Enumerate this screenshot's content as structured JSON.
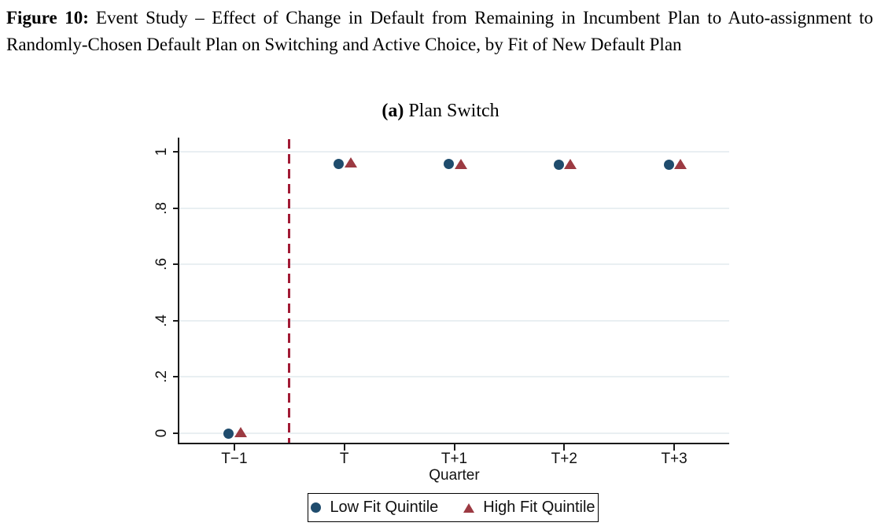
{
  "figure": {
    "label": "Figure 10:",
    "title": "Event Study – Effect of Change in Default from Remaining in Incumbent Plan to Auto-assignment to Randomly-Chosen Default Plan on Switching and Active Choice, by Fit of New Default Plan"
  },
  "panel": {
    "label": "(a)",
    "title": "Plan Switch"
  },
  "chart_data": {
    "type": "scatter",
    "subtitle": "(a) Plan Switch",
    "categories": [
      "T−1",
      "T",
      "T+1",
      "T+2",
      "T+3"
    ],
    "xlabel": "Quarter",
    "ylabel": "",
    "ylim": [
      0,
      1
    ],
    "yticks": [
      {
        "value": 0.0,
        "label": "0"
      },
      {
        "value": 0.2,
        "label": ".2"
      },
      {
        "value": 0.4,
        "label": ".4"
      },
      {
        "value": 0.6,
        "label": ".6"
      },
      {
        "value": 0.8,
        "label": ".8"
      },
      {
        "value": 1.0,
        "label": "1"
      }
    ],
    "grid": true,
    "legend_position": "bottom-center",
    "series": [
      {
        "name": "Low Fit Quintile",
        "marker": "circle",
        "color": "#1f4c6d",
        "values": [
          0.0,
          0.958,
          0.956,
          0.955,
          0.955
        ]
      },
      {
        "name": "High Fit Quintile",
        "marker": "triangle",
        "color": "#9c3a42",
        "values": [
          0.004,
          0.961,
          0.958,
          0.958,
          0.958
        ]
      }
    ],
    "ref_line": {
      "description": "vertical dashed line between T−1 and T",
      "between_index": 0,
      "style": "dashed",
      "color": "#a11b35"
    },
    "colors": {
      "gridline": "#e9eff2",
      "axis": "#1a1a1a",
      "background": "#ffffff"
    }
  }
}
